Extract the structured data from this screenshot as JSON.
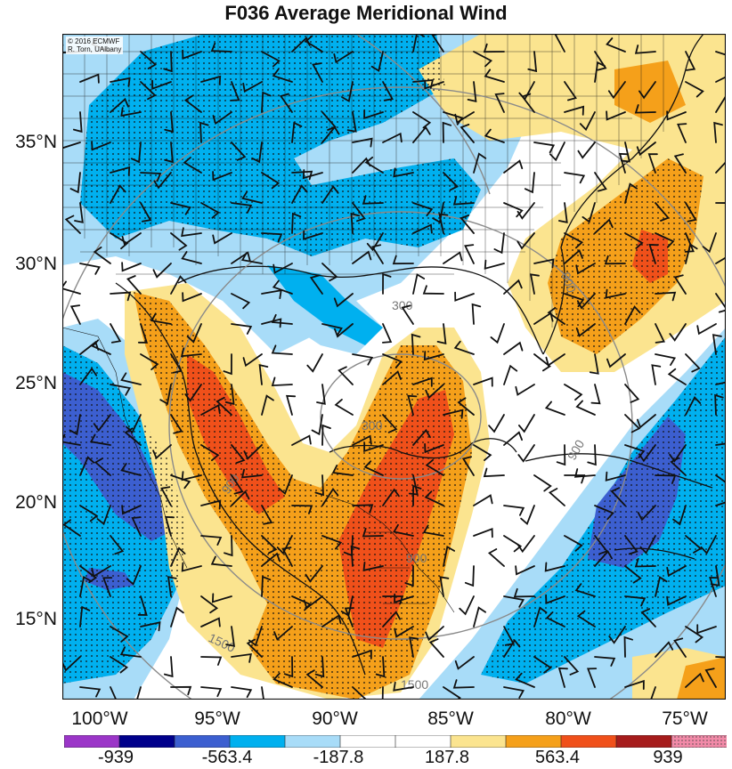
{
  "title": "F036 Average Meridional Wind",
  "credit": [
    "© 2016 ECMWF",
    "R. Torn, UAlbany"
  ],
  "lat_labels": [
    "35°N",
    "30°N",
    "25°N",
    "20°N",
    "15°N"
  ],
  "lon_labels": [
    "100°W",
    "95°W",
    "90°W",
    "85°W",
    "80°W",
    "75°W"
  ],
  "contour_labels": [
    "300",
    "300",
    "900",
    "900",
    "900",
    "900",
    "1500",
    "1500"
  ],
  "colorbar": {
    "colors": [
      "#9b36c8",
      "#00008b",
      "#3c5fd0",
      "#00b0ef",
      "#a8dcf8",
      "#ffffff",
      "#ffffff",
      "#fbe48f",
      "#f5a01a",
      "#f0501a",
      "#a61c1c",
      "#f28aa8"
    ],
    "labels": [
      "-939",
      "-563.4",
      "-187.8",
      "187.8",
      "563.4",
      "939"
    ]
  },
  "colors": {
    "land_lines": "#111111",
    "contour": "#8a8a8a"
  }
}
